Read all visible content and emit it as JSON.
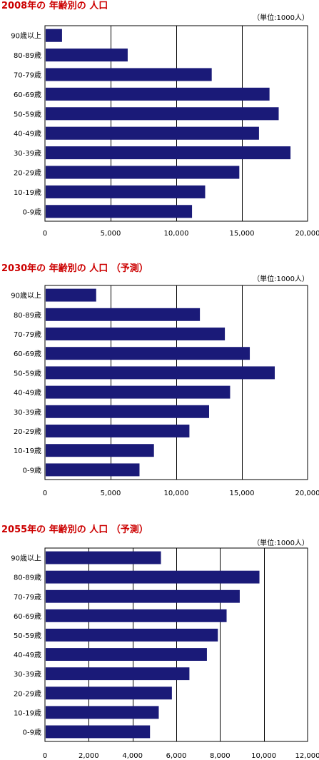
{
  "chart_data": [
    {
      "type": "bar",
      "orientation": "horizontal",
      "title": "2008年の 年齢別の 人口",
      "unit_note": "（単位:1000人）",
      "categories": [
        "90歳以上",
        "80-89歳",
        "70-79歳",
        "60-69歳",
        "50-59歳",
        "40-49歳",
        "30-39歳",
        "20-29歳",
        "10-19歳",
        "0-9歳"
      ],
      "values": [
        1300,
        6300,
        12700,
        17100,
        17800,
        16300,
        18700,
        14800,
        12200,
        11200
      ],
      "xlim": [
        0,
        20000
      ],
      "ticks": [
        "0",
        "5,000",
        "10,000",
        "15,000",
        "20,000"
      ],
      "tick_values": [
        0,
        5000,
        10000,
        15000,
        20000
      ],
      "grid": "vertical",
      "bar_color": "#1a1a78"
    },
    {
      "type": "bar",
      "orientation": "horizontal",
      "title": "2030年の 年齢別の 人口 （予測）",
      "unit_note": "（単位:1000人）",
      "categories": [
        "90歳以上",
        "80-89歳",
        "70-79歳",
        "60-69歳",
        "50-59歳",
        "40-49歳",
        "30-39歳",
        "20-29歳",
        "10-19歳",
        "0-9歳"
      ],
      "values": [
        3900,
        11800,
        13700,
        15600,
        17500,
        14100,
        12500,
        11000,
        8300,
        7200
      ],
      "xlim": [
        0,
        20000
      ],
      "ticks": [
        "0",
        "5,000",
        "10,000",
        "15,000",
        "20,000"
      ],
      "tick_values": [
        0,
        5000,
        10000,
        15000,
        20000
      ],
      "grid": "vertical",
      "bar_color": "#1a1a78"
    },
    {
      "type": "bar",
      "orientation": "horizontal",
      "title": "2055年の 年齢別の 人口 （予測）",
      "unit_note": "（単位:1000人）",
      "categories": [
        "90歳以上",
        "80-89歳",
        "70-79歳",
        "60-69歳",
        "50-59歳",
        "40-49歳",
        "30-39歳",
        "20-29歳",
        "10-19歳",
        "0-9歳"
      ],
      "values": [
        5300,
        9800,
        8900,
        8300,
        7900,
        7400,
        6600,
        5800,
        5200,
        4800
      ],
      "xlim": [
        0,
        12000
      ],
      "ticks": [
        "0",
        "2,000",
        "4,000",
        "6,000",
        "8,000",
        "10,000",
        "12,000"
      ],
      "tick_values": [
        0,
        2000,
        4000,
        6000,
        8000,
        10000,
        12000
      ],
      "grid": "vertical",
      "bar_color": "#1a1a78"
    }
  ]
}
